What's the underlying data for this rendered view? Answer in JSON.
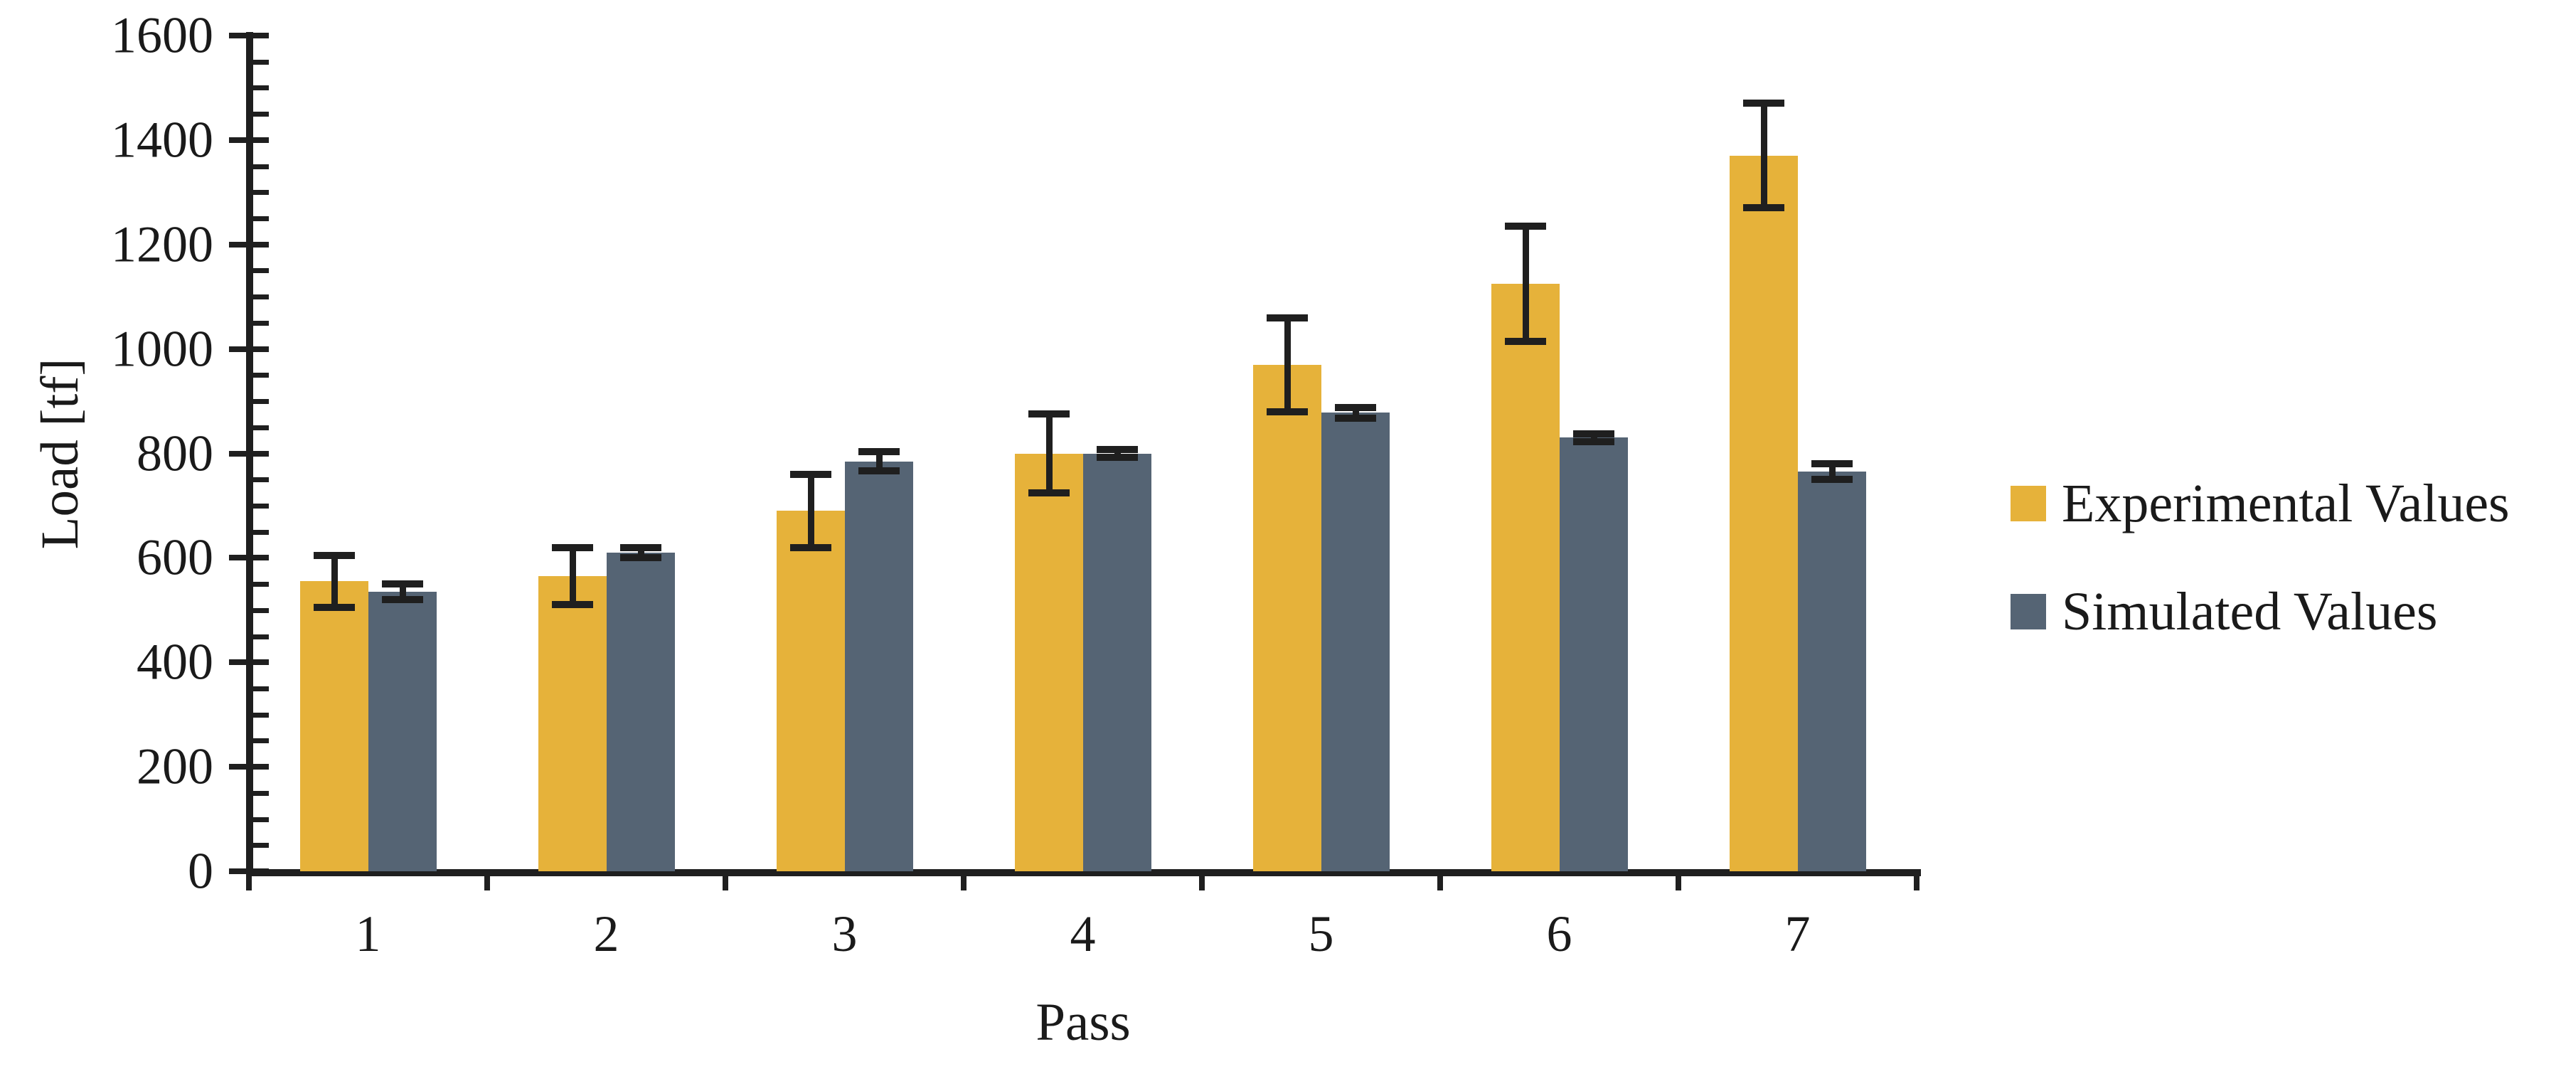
{
  "chart_data": {
    "type": "bar",
    "title": "",
    "xlabel": "Pass",
    "ylabel": "Load [tf]",
    "categories": [
      "1",
      "2",
      "3",
      "4",
      "5",
      "6",
      "7"
    ],
    "series": [
      {
        "name": "Experimental Values",
        "color": "#E6B23A",
        "values": [
          555,
          565,
          690,
          800,
          970,
          1125,
          1370
        ],
        "errors": [
          50,
          55,
          70,
          75,
          90,
          110,
          100
        ]
      },
      {
        "name": "Simulated Values",
        "color": "#556474",
        "values": [
          535,
          610,
          785,
          800,
          878,
          830,
          765
        ],
        "errors": [
          15,
          10,
          18,
          8,
          10,
          7,
          15
        ]
      }
    ],
    "ylim": [
      0,
      1600
    ],
    "y_major_step": 200,
    "y_minor_step": 50,
    "y_tick_labels": [
      "0",
      "200",
      "400",
      "600",
      "800",
      "1000",
      "1200",
      "1400",
      "1600"
    ],
    "grid": false,
    "legend_position": "right",
    "error_bar_color": "#1f1f1f",
    "axis_color": "#1f1f1f"
  },
  "legend": {
    "items": [
      {
        "label": "Experimental Values",
        "color": "#E6B23A"
      },
      {
        "label": "Simulated Values",
        "color": "#556474"
      }
    ]
  },
  "axes": {
    "y_title": "Load [tf]",
    "x_title": "Pass"
  }
}
